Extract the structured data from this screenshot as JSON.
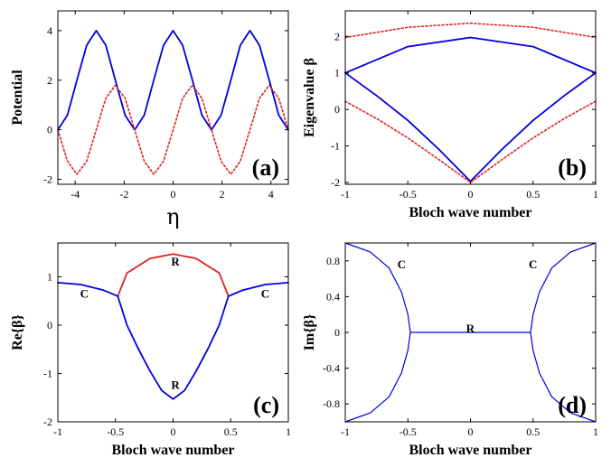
{
  "chart_data": [
    {
      "id": "a",
      "type": "line",
      "panel_label": "(a)",
      "xlabel": "η",
      "ylabel": "Potential",
      "xlim": [
        -4.71,
        4.71
      ],
      "ylim": [
        -2.2,
        4.8
      ],
      "xticks": [
        -4,
        -2,
        0,
        2,
        4
      ],
      "xtick_labels": [
        "-4",
        "-2",
        "0",
        "2",
        "4"
      ],
      "yticks": [
        -2,
        0,
        2,
        4
      ],
      "ytick_labels": [
        "-2",
        "0",
        "2",
        "4"
      ],
      "series": [
        {
          "style": "solid",
          "color": "#0000dd",
          "formula": "2+2cos(2η)",
          "x": [
            -4.71,
            -4.32,
            -3.93,
            -3.53,
            -3.14,
            -2.75,
            -2.36,
            -1.96,
            -1.57,
            -1.18,
            -0.79,
            -0.39,
            0,
            0.39,
            0.79,
            1.18,
            1.57,
            1.96,
            2.36,
            2.75,
            3.14,
            3.53,
            3.93,
            4.32,
            4.71
          ],
          "y": [
            0,
            0.59,
            2,
            3.41,
            4,
            3.41,
            2,
            0.59,
            0,
            0.59,
            2,
            3.41,
            4,
            3.41,
            2,
            0.59,
            0,
            0.59,
            2,
            3.41,
            4,
            3.41,
            2,
            0.59,
            0
          ]
        },
        {
          "style": "dotted",
          "color": "#dd2222",
          "formula": "1.8sin(2η)",
          "x": [
            -4.71,
            -4.32,
            -3.93,
            -3.53,
            -3.14,
            -2.75,
            -2.36,
            -1.96,
            -1.57,
            -1.18,
            -0.79,
            -0.39,
            0,
            0.39,
            0.79,
            1.18,
            1.57,
            1.96,
            2.36,
            2.75,
            3.14,
            3.53,
            3.93,
            4.32,
            4.71
          ],
          "y": [
            0,
            -1.27,
            -1.8,
            -1.27,
            0,
            1.27,
            1.8,
            1.27,
            0,
            -1.27,
            -1.8,
            -1.27,
            0,
            1.27,
            1.8,
            1.27,
            0,
            -1.27,
            -1.8,
            -1.27,
            0,
            1.27,
            1.8,
            1.27,
            0
          ]
        }
      ]
    },
    {
      "id": "b",
      "type": "line",
      "panel_label": "(b)",
      "xlabel": "Bloch wave number",
      "ylabel": "Eigenvalue β",
      "xlim": [
        -1,
        1
      ],
      "ylim": [
        -2.05,
        2.7
      ],
      "xticks": [
        -1,
        -0.5,
        0,
        0.5,
        1
      ],
      "xtick_labels": [
        "-1",
        "-0.5",
        "0",
        "0.5",
        "1"
      ],
      "yticks": [
        -2,
        -1,
        0,
        1,
        2
      ],
      "ytick_labels": [
        "-2",
        "-1",
        "0",
        "1",
        "2"
      ],
      "series": [
        {
          "style": "dotted",
          "color": "#dd2222",
          "x": [
            -1,
            -0.5,
            0,
            0.5,
            1
          ],
          "y": [
            1.97,
            2.25,
            2.36,
            2.25,
            1.97
          ]
        },
        {
          "style": "solid",
          "color": "#0000dd",
          "x": [
            -1,
            -0.5,
            0,
            0.5,
            1
          ],
          "y": [
            1,
            1.72,
            1.97,
            1.72,
            1
          ]
        },
        {
          "style": "solid",
          "color": "#0000dd",
          "x": [
            -1,
            -0.75,
            -0.5,
            -0.25,
            0,
            0.25,
            0.5,
            0.75,
            1
          ],
          "y": [
            1,
            0.38,
            -0.3,
            -1.1,
            -1.97,
            -1.1,
            -0.3,
            0.38,
            1
          ]
        },
        {
          "style": "dotted",
          "color": "#dd2222",
          "x": [
            -1,
            -0.75,
            -0.5,
            -0.25,
            0,
            0.25,
            0.5,
            0.75,
            1
          ],
          "y": [
            0.22,
            -0.25,
            -0.78,
            -1.38,
            -2,
            -1.38,
            -0.78,
            -0.25,
            0.22
          ]
        }
      ]
    },
    {
      "id": "c",
      "type": "line",
      "panel_label": "(c)",
      "xlabel": "Bloch wave number",
      "ylabel": "Re{β}",
      "xlim": [
        -1,
        1
      ],
      "ylim": [
        -2,
        1.7
      ],
      "xticks": [
        -1,
        -0.5,
        0,
        0.5,
        1
      ],
      "xtick_labels": [
        "-1",
        "-0.5",
        "0",
        "0.5",
        "1"
      ],
      "yticks": [
        -2,
        -1,
        0,
        1
      ],
      "ytick_labels": [
        "-2",
        "-1",
        "0",
        "1"
      ],
      "annotations": [
        {
          "text": "C",
          "x": -0.77,
          "y": 0.66
        },
        {
          "text": "C",
          "x": 0.8,
          "y": 0.66
        },
        {
          "text": "R",
          "x": 0.02,
          "y": 1.33
        },
        {
          "text": "R",
          "x": 0.02,
          "y": -1.22
        }
      ],
      "series": [
        {
          "style": "solid",
          "color": "#0000dd",
          "x": [
            -1,
            -0.8,
            -0.6,
            -0.48
          ],
          "y": [
            0.88,
            0.84,
            0.72,
            0.6
          ]
        },
        {
          "style": "solid",
          "color": "#0000dd",
          "x": [
            0.48,
            0.6,
            0.8,
            1
          ],
          "y": [
            0.6,
            0.72,
            0.84,
            0.88
          ]
        },
        {
          "style": "solid",
          "color": "#dd2222",
          "x": [
            -0.48,
            -0.4,
            -0.2,
            0,
            0.2,
            0.4,
            0.48
          ],
          "y": [
            0.6,
            1.08,
            1.38,
            1.47,
            1.38,
            1.08,
            0.6
          ]
        },
        {
          "style": "solid",
          "color": "#0000dd",
          "x": [
            -0.48,
            -0.4,
            -0.3,
            -0.2,
            -0.1,
            0,
            0.1,
            0.2,
            0.3,
            0.4,
            0.48
          ],
          "y": [
            0.6,
            0.0,
            -0.5,
            -0.95,
            -1.35,
            -1.53,
            -1.35,
            -0.95,
            -0.5,
            0.0,
            0.6
          ]
        }
      ]
    },
    {
      "id": "d",
      "type": "line",
      "panel_label": "(d)",
      "xlabel": "Bloch wave number",
      "ylabel": "Im{β}",
      "xlim": [
        -1,
        1
      ],
      "ylim": [
        -1,
        1
      ],
      "xticks": [
        -1,
        -0.5,
        0,
        0.5,
        1
      ],
      "xtick_labels": [
        "-1",
        "-0.5",
        "0",
        "0.5",
        "1"
      ],
      "yticks": [
        -0.8,
        -0.4,
        0,
        0.4,
        0.8
      ],
      "ytick_labels": [
        "-0.8",
        "-0.4",
        "0",
        "0.4",
        "0.8"
      ],
      "annotations": [
        {
          "text": "C",
          "x": -0.55,
          "y": 0.77
        },
        {
          "text": "C",
          "x": 0.5,
          "y": 0.77
        },
        {
          "text": "R",
          "x": 0.0,
          "y": 0.05
        }
      ],
      "series": [
        {
          "style": "solid",
          "color": "#0000dd",
          "x": [
            -1,
            -0.8,
            -0.65,
            -0.55,
            -0.5,
            -0.48,
            -0.5,
            -0.55,
            -0.65,
            -0.8,
            -1
          ],
          "y": [
            1,
            0.9,
            0.72,
            0.45,
            0.2,
            0,
            -0.2,
            -0.45,
            -0.72,
            -0.9,
            -1
          ]
        },
        {
          "style": "solid",
          "color": "#0000dd",
          "x": [
            1,
            0.8,
            0.65,
            0.55,
            0.5,
            0.48,
            0.5,
            0.55,
            0.65,
            0.8,
            1
          ],
          "y": [
            1,
            0.9,
            0.72,
            0.45,
            0.2,
            0,
            -0.2,
            -0.45,
            -0.72,
            -0.9,
            -1
          ]
        },
        {
          "style": "solid",
          "color": "#0000dd",
          "x": [
            -0.48,
            0.48
          ],
          "y": [
            0,
            0
          ]
        }
      ]
    }
  ]
}
